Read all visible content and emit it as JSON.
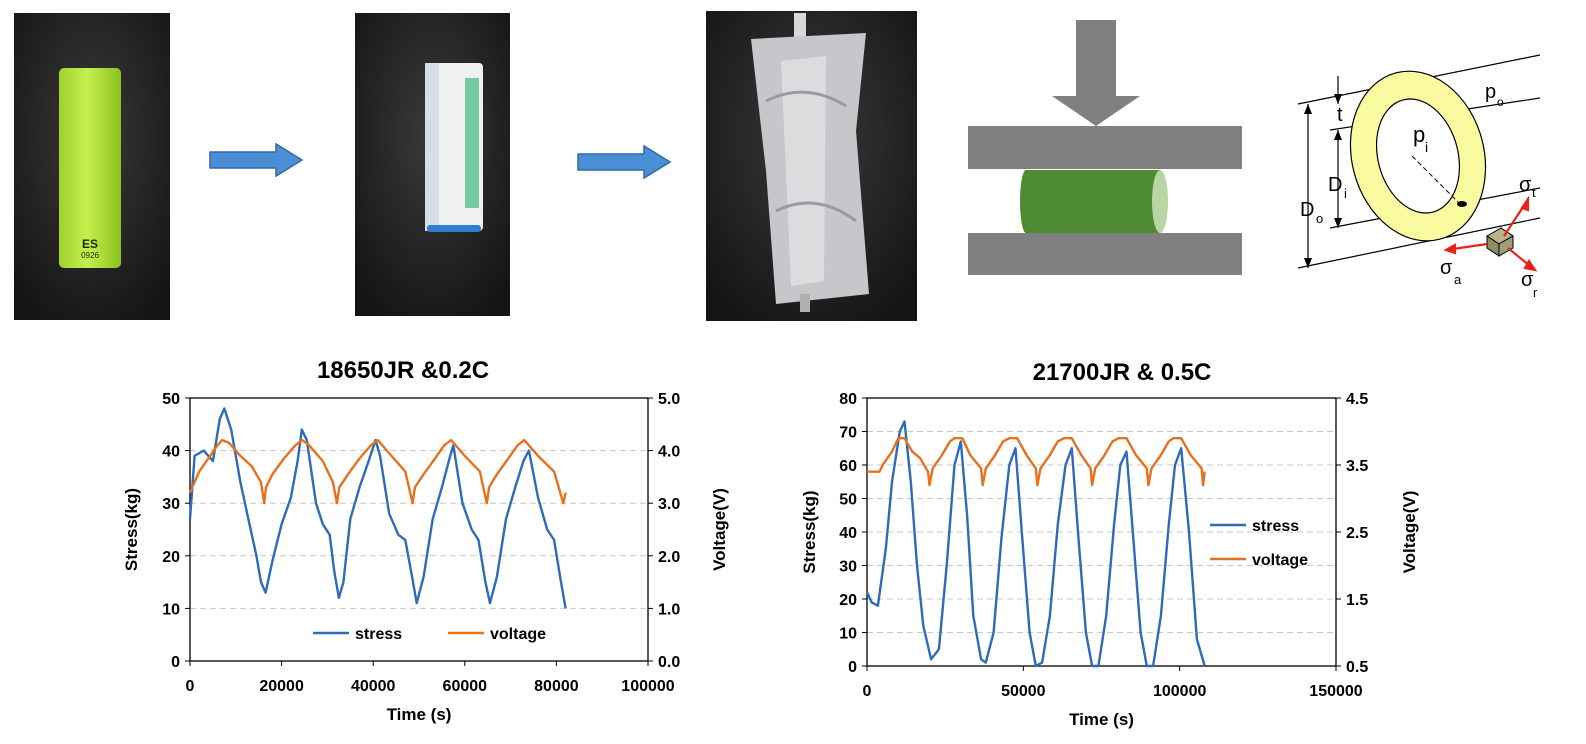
{
  "process": {
    "cell_marking": [
      "ES",
      "0926"
    ],
    "shell_labels": {
      "t": "t",
      "p_o": "p",
      "p_o_sub": "o",
      "p_i": "p",
      "p_i_sub": "i",
      "D_i": "D",
      "D_i_sub": "i",
      "D_o": "D",
      "D_o_sub": "o",
      "sigma_t": "σ",
      "sigma_t_sub": "t",
      "sigma_a": "σ",
      "sigma_a_sub": "a",
      "sigma_r": "σ",
      "sigma_r_sub": "r"
    },
    "colors": {
      "cell_green": "#b5e83c",
      "arrow_blue": "#4a8fd6",
      "plate_gray": "#808080",
      "cylinder_green": "#4e8b33",
      "shell_yellow": "#fafaa0",
      "stress_red": "#e8231a"
    }
  },
  "chart_data": [
    {
      "type": "line",
      "title": "18650JR &0.2C",
      "xlabel": "Time (s)",
      "ylabel": "Stress(kg)",
      "y2label": "Voltage(V)",
      "xlim": [
        0,
        100000
      ],
      "ylim": [
        0,
        50
      ],
      "y2lim": [
        0.0,
        5.0
      ],
      "xticks": [
        "0",
        "20000",
        "40000",
        "60000",
        "80000",
        "100000"
      ],
      "yticks": [
        "0",
        "10",
        "20",
        "30",
        "40",
        "50"
      ],
      "y2ticks": [
        "0.0",
        "1.0",
        "2.0",
        "3.0",
        "4.0",
        "5.0"
      ],
      "grid": "horizontal dashed",
      "legend": "bottom",
      "series": [
        {
          "name": "stress",
          "color": "#2e6bb8",
          "axis": "left",
          "x": [
            0,
            1000,
            3000,
            5000,
            6500,
            7500,
            9000,
            11000,
            13000,
            14500,
            15500,
            16500,
            18000,
            20000,
            22000,
            23500,
            24400,
            25500,
            27500,
            29000,
            30500,
            31500,
            32500,
            33500,
            35000,
            37000,
            39000,
            40500,
            41500,
            43500,
            45500,
            47000,
            48500,
            49500,
            51000,
            53000,
            55000,
            56500,
            57500,
            59500,
            61500,
            63000,
            64500,
            65500,
            67000,
            69000,
            71000,
            72800,
            74000,
            76000,
            78000,
            79500,
            81000,
            82000
          ],
          "y": [
            27,
            39,
            40,
            38,
            46,
            48,
            44,
            34,
            26,
            20,
            15,
            13,
            19,
            26,
            31,
            38,
            44,
            42,
            30,
            26,
            24,
            17,
            12,
            15,
            27,
            33,
            38,
            42,
            39,
            28,
            24,
            23,
            16,
            11,
            16,
            27,
            33,
            38,
            41,
            30,
            25,
            23,
            15,
            11,
            16,
            27,
            33,
            38,
            40,
            31,
            25,
            23,
            15,
            10
          ]
        },
        {
          "name": "voltage",
          "color": "#e6711e",
          "axis": "right",
          "x": [
            0,
            2000,
            4000,
            6000,
            7000,
            8500,
            11000,
            13500,
            15500,
            16200,
            16600,
            18000,
            20500,
            23000,
            24500,
            26000,
            29000,
            31200,
            32100,
            32600,
            34500,
            37000,
            39500,
            41000,
            44000,
            47000,
            48600,
            49100,
            51000,
            53500,
            55500,
            57000,
            60000,
            63300,
            64800,
            65300,
            67000,
            69500,
            71500,
            73000,
            76000,
            79500,
            81500,
            82000
          ],
          "y": [
            3.2,
            3.6,
            3.85,
            4.1,
            4.2,
            4.15,
            3.9,
            3.7,
            3.4,
            3.0,
            3.3,
            3.55,
            3.85,
            4.1,
            4.2,
            4.1,
            3.8,
            3.4,
            3.0,
            3.3,
            3.55,
            3.85,
            4.1,
            4.2,
            3.9,
            3.6,
            3.0,
            3.3,
            3.55,
            3.85,
            4.1,
            4.2,
            3.9,
            3.6,
            3.0,
            3.3,
            3.55,
            3.85,
            4.1,
            4.2,
            3.9,
            3.6,
            3.0,
            3.2
          ]
        }
      ]
    },
    {
      "type": "line",
      "title": "21700JR &  0.5C",
      "xlabel": "Time (s)",
      "ylabel": "Stress(kg)",
      "y2label": "Voltage(V)",
      "xlim": [
        0,
        150000
      ],
      "ylim": [
        0,
        80
      ],
      "y2lim": [
        0.5,
        4.5
      ],
      "xticks": [
        "0",
        "50000",
        "100000",
        "150000"
      ],
      "yticks": [
        "0",
        "10",
        "20",
        "30",
        "40",
        "50",
        "60",
        "70",
        "80"
      ],
      "y2ticks": [
        "0.5",
        "1.5",
        "2.5",
        "3.5",
        "4.5"
      ],
      "grid": "horizontal dashed",
      "legend": "right",
      "series": [
        {
          "name": "stress",
          "color": "#2e6bb8",
          "axis": "left",
          "x": [
            0,
            1500,
            3500,
            6000,
            8000,
            10500,
            12000,
            14000,
            16000,
            18000,
            20500,
            23000,
            25500,
            28000,
            30000,
            32000,
            34000,
            36500,
            38000,
            40500,
            43000,
            45500,
            47500,
            49500,
            52000,
            54000,
            56000,
            58500,
            61000,
            63500,
            65500,
            67500,
            70000,
            72000,
            74000,
            76500,
            79000,
            81000,
            83000,
            85000,
            87500,
            89500,
            91500,
            94000,
            96500,
            98500,
            100500,
            103000,
            105500,
            108000
          ],
          "y": [
            22,
            19,
            18,
            35,
            55,
            70,
            73,
            55,
            30,
            12,
            2,
            5,
            30,
            60,
            67,
            45,
            15,
            2,
            1,
            10,
            38,
            60,
            65,
            40,
            10,
            0,
            1,
            15,
            42,
            60,
            65,
            40,
            10,
            0,
            0,
            15,
            42,
            60,
            64,
            40,
            10,
            0,
            0,
            15,
            42,
            60,
            65,
            40,
            8,
            0
          ]
        },
        {
          "name": "voltage",
          "color": "#e6711e",
          "axis": "right",
          "x": [
            0,
            4000,
            5000,
            8000,
            10000,
            12000,
            14500,
            17000,
            19500,
            20000,
            21000,
            24000,
            26500,
            28000,
            30500,
            33000,
            36500,
            37000,
            38000,
            41000,
            43500,
            45500,
            48000,
            51000,
            54000,
            54500,
            55500,
            58500,
            61000,
            63000,
            65500,
            68500,
            71500,
            72000,
            73000,
            76000,
            78500,
            80500,
            83000,
            86000,
            89500,
            90000,
            91000,
            94000,
            96500,
            98000,
            100500,
            103500,
            107000,
            107500,
            108000
          ],
          "y": [
            3.4,
            3.4,
            3.5,
            3.7,
            3.9,
            3.9,
            3.7,
            3.6,
            3.4,
            3.2,
            3.45,
            3.65,
            3.85,
            3.9,
            3.9,
            3.65,
            3.45,
            3.2,
            3.45,
            3.65,
            3.85,
            3.9,
            3.9,
            3.65,
            3.45,
            3.2,
            3.45,
            3.65,
            3.85,
            3.9,
            3.9,
            3.65,
            3.45,
            3.2,
            3.45,
            3.65,
            3.85,
            3.9,
            3.9,
            3.65,
            3.45,
            3.2,
            3.45,
            3.65,
            3.85,
            3.9,
            3.9,
            3.65,
            3.45,
            3.2,
            3.4
          ]
        }
      ]
    }
  ]
}
